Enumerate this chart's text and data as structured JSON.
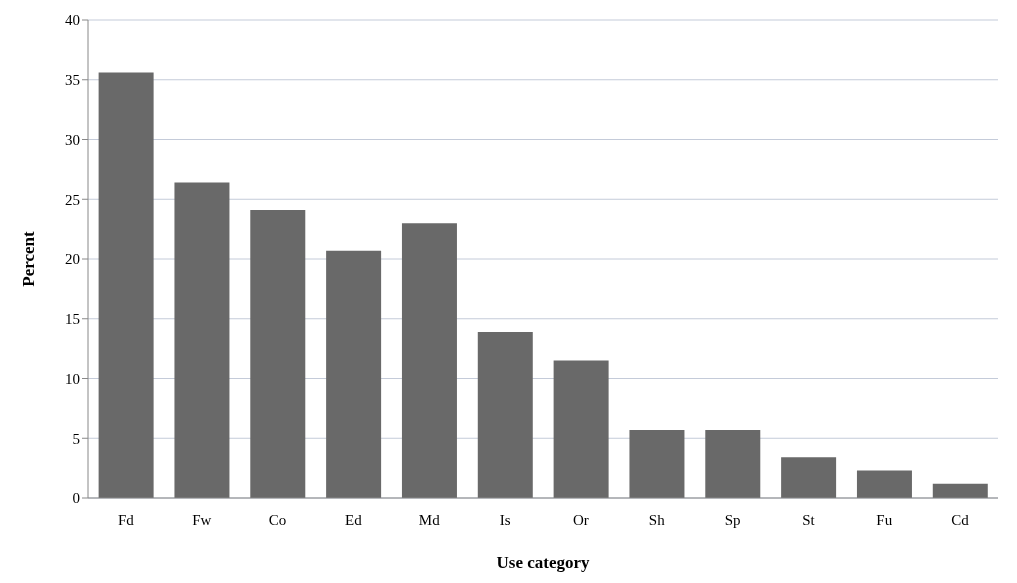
{
  "chart_data": {
    "type": "bar",
    "xlabel": "Use category",
    "ylabel": "Percent",
    "categories": [
      "Fd",
      "Fw",
      "Co",
      "Ed",
      "Md",
      "Is",
      "Or",
      "Sh",
      "Sp",
      "St",
      "Fu",
      "Cd"
    ],
    "values": [
      35.6,
      26.4,
      24.1,
      20.7,
      23.0,
      13.9,
      11.5,
      5.7,
      5.7,
      3.4,
      2.3,
      1.2
    ],
    "color": "#696969",
    "ylim": [
      0,
      40
    ],
    "yticks": [
      0,
      5,
      10,
      15,
      20,
      25,
      30,
      35,
      40
    ],
    "grid": "y"
  }
}
